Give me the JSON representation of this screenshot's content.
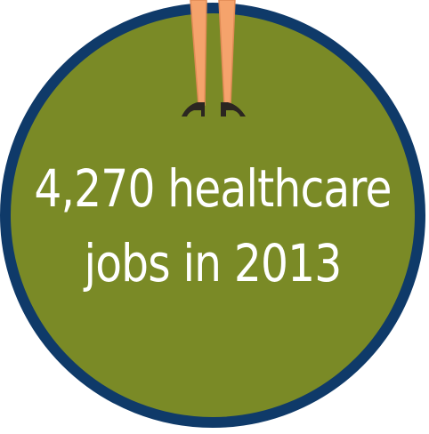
{
  "badge": {
    "line1": "4,270 healthcare",
    "line2": "jobs in 2013"
  },
  "colors": {
    "circle_fill": "#7a8a26",
    "circle_ring": "#0f3a69",
    "text": "#ffffff",
    "skin": "#f5a36c",
    "shoes": "#2b2621"
  },
  "icon": "woman-legs-icon"
}
